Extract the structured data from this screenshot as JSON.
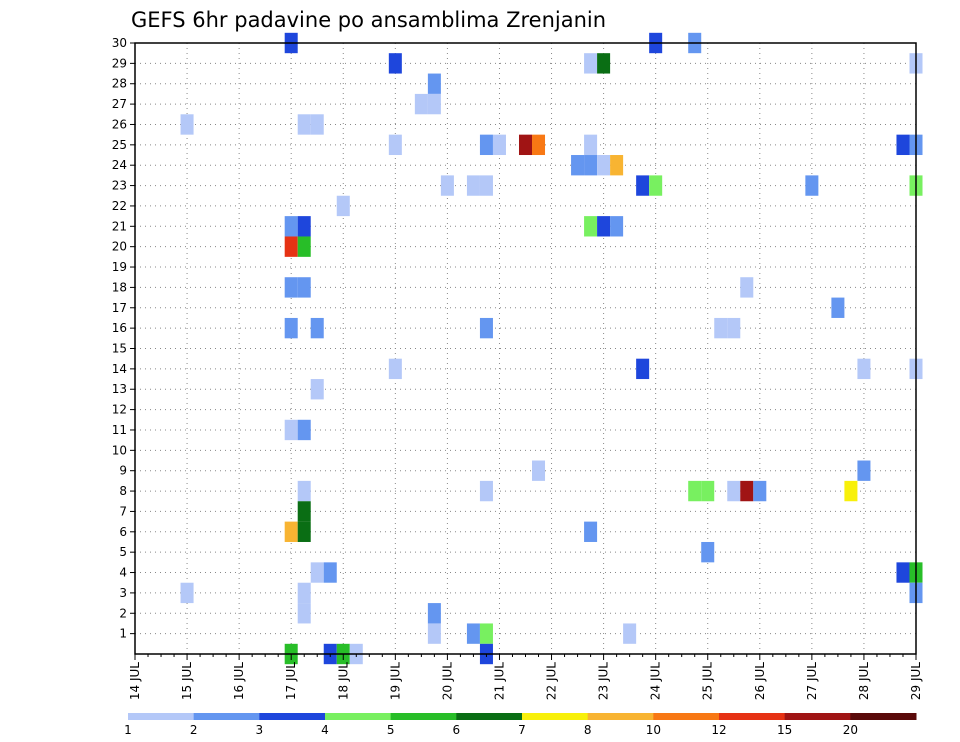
{
  "chart_data": {
    "type": "heatmap",
    "title": "GEFS 6hr padavine po ansamblima Zrenjanin",
    "xlabel": "",
    "ylabel": "",
    "x_tick_labels": [
      "14 JUL",
      "15 JUL",
      "16 JUL",
      "17 JUL",
      "18 JUL",
      "19 JUL",
      "20 JUL",
      "21 JUL",
      "22 JUL",
      "23 JUL",
      "24 JUL",
      "25 JUL",
      "26 JUL",
      "27 JUL",
      "28 JUL",
      "29 JUL"
    ],
    "x_time_range_days": [
      0,
      15
    ],
    "y_tick_labels": [
      "1",
      "2",
      "3",
      "4",
      "5",
      "6",
      "7",
      "8",
      "9",
      "10",
      "11",
      "12",
      "13",
      "14",
      "15",
      "16",
      "17",
      "18",
      "19",
      "20",
      "21",
      "22",
      "23",
      "24",
      "25",
      "26",
      "27",
      "28",
      "29",
      "30"
    ],
    "y_range": [
      0,
      30
    ],
    "step_hours": 6,
    "grid": true,
    "colorbar": {
      "position": "bottom",
      "levels": [
        "1",
        "2",
        "3",
        "4",
        "5",
        "6",
        "7",
        "8",
        "10",
        "12",
        "15",
        "20"
      ],
      "colors": [
        "#b4c8f8",
        "#6496f0",
        "#1e46dc",
        "#78f060",
        "#28be28",
        "#0a6e14",
        "#f8f00a",
        "#f8b432",
        "#f87814",
        "#e63214",
        "#a01414",
        "#5a0a0a"
      ]
    },
    "cells": [
      {
        "m": 30,
        "t": "17 JUL 00Z",
        "c": 3
      },
      {
        "m": 30,
        "t": "24 JUL 00Z",
        "c": 3
      },
      {
        "m": 30,
        "t": "24 JUL 18Z",
        "c": 2
      },
      {
        "m": 29,
        "t": "19 JUL 00Z",
        "c": 3
      },
      {
        "m": 29,
        "t": "22 JUL 18Z",
        "c": 1
      },
      {
        "m": 29,
        "t": "23 JUL 00Z",
        "c": 6
      },
      {
        "m": 29,
        "t": "29 JUL 00Z",
        "c": 1
      },
      {
        "m": 28,
        "t": "19 JUL 18Z",
        "c": 2
      },
      {
        "m": 27,
        "t": "19 JUL 12Z",
        "c": 1
      },
      {
        "m": 27,
        "t": "19 JUL 18Z",
        "c": 1
      },
      {
        "m": 26,
        "t": "15 JUL 00Z",
        "c": 1
      },
      {
        "m": 26,
        "t": "17 JUL 06Z",
        "c": 1
      },
      {
        "m": 26,
        "t": "17 JUL 12Z",
        "c": 1
      },
      {
        "m": 25,
        "t": "19 JUL 00Z",
        "c": 1
      },
      {
        "m": 25,
        "t": "20 JUL 18Z",
        "c": 2
      },
      {
        "m": 25,
        "t": "21 JUL 00Z",
        "c": 1
      },
      {
        "m": 25,
        "t": "21 JUL 12Z",
        "c": 11
      },
      {
        "m": 25,
        "t": "21 JUL 18Z",
        "c": 9
      },
      {
        "m": 25,
        "t": "22 JUL 18Z",
        "c": 1
      },
      {
        "m": 25,
        "t": "28 JUL 18Z",
        "c": 3
      },
      {
        "m": 25,
        "t": "29 JUL 00Z",
        "c": 2
      },
      {
        "m": 24,
        "t": "22 JUL 12Z",
        "c": 2
      },
      {
        "m": 24,
        "t": "22 JUL 18Z",
        "c": 2
      },
      {
        "m": 24,
        "t": "23 JUL 00Z",
        "c": 1
      },
      {
        "m": 24,
        "t": "23 JUL 06Z",
        "c": 8
      },
      {
        "m": 23,
        "t": "20 JUL 00Z",
        "c": 1
      },
      {
        "m": 23,
        "t": "20 JUL 12Z",
        "c": 1
      },
      {
        "m": 23,
        "t": "20 JUL 18Z",
        "c": 1
      },
      {
        "m": 23,
        "t": "23 JUL 18Z",
        "c": 3
      },
      {
        "m": 23,
        "t": "24 JUL 00Z",
        "c": 4
      },
      {
        "m": 23,
        "t": "27 JUL 00Z",
        "c": 2
      },
      {
        "m": 23,
        "t": "29 JUL 00Z",
        "c": 4
      },
      {
        "m": 22,
        "t": "18 JUL 00Z",
        "c": 1
      },
      {
        "m": 21,
        "t": "17 JUL 00Z",
        "c": 2
      },
      {
        "m": 21,
        "t": "17 JUL 06Z",
        "c": 3
      },
      {
        "m": 21,
        "t": "22 JUL 18Z",
        "c": 4
      },
      {
        "m": 21,
        "t": "23 JUL 00Z",
        "c": 3
      },
      {
        "m": 21,
        "t": "23 JUL 06Z",
        "c": 2
      },
      {
        "m": 20,
        "t": "17 JUL 00Z",
        "c": 10
      },
      {
        "m": 20,
        "t": "17 JUL 06Z",
        "c": 5
      },
      {
        "m": 18,
        "t": "17 JUL 00Z",
        "c": 2
      },
      {
        "m": 18,
        "t": "17 JUL 06Z",
        "c": 2
      },
      {
        "m": 18,
        "t": "25 JUL 18Z",
        "c": 1
      },
      {
        "m": 17,
        "t": "27 JUL 12Z",
        "c": 2
      },
      {
        "m": 16,
        "t": "17 JUL 00Z",
        "c": 2
      },
      {
        "m": 16,
        "t": "17 JUL 12Z",
        "c": 2
      },
      {
        "m": 16,
        "t": "20 JUL 18Z",
        "c": 2
      },
      {
        "m": 16,
        "t": "25 JUL 06Z",
        "c": 1
      },
      {
        "m": 16,
        "t": "25 JUL 12Z",
        "c": 1
      },
      {
        "m": 14,
        "t": "19 JUL 00Z",
        "c": 1
      },
      {
        "m": 14,
        "t": "23 JUL 18Z",
        "c": 3
      },
      {
        "m": 14,
        "t": "28 JUL 00Z",
        "c": 1
      },
      {
        "m": 14,
        "t": "29 JUL 00Z",
        "c": 1
      },
      {
        "m": 13,
        "t": "17 JUL 12Z",
        "c": 1
      },
      {
        "m": 11,
        "t": "17 JUL 00Z",
        "c": 1
      },
      {
        "m": 11,
        "t": "17 JUL 06Z",
        "c": 2
      },
      {
        "m": 9,
        "t": "21 JUL 18Z",
        "c": 1
      },
      {
        "m": 9,
        "t": "28 JUL 00Z",
        "c": 2
      },
      {
        "m": 8,
        "t": "17 JUL 06Z",
        "c": 1
      },
      {
        "m": 8,
        "t": "20 JUL 18Z",
        "c": 1
      },
      {
        "m": 8,
        "t": "24 JUL 18Z",
        "c": 4
      },
      {
        "m": 8,
        "t": "25 JUL 00Z",
        "c": 4
      },
      {
        "m": 8,
        "t": "25 JUL 12Z",
        "c": 1
      },
      {
        "m": 8,
        "t": "25 JUL 18Z",
        "c": 11
      },
      {
        "m": 8,
        "t": "26 JUL 00Z",
        "c": 2
      },
      {
        "m": 8,
        "t": "27 JUL 18Z",
        "c": 7
      },
      {
        "m": 7,
        "t": "17 JUL 06Z",
        "c": 6
      },
      {
        "m": 6,
        "t": "17 JUL 00Z",
        "c": 8
      },
      {
        "m": 6,
        "t": "17 JUL 06Z",
        "c": 6
      },
      {
        "m": 6,
        "t": "22 JUL 18Z",
        "c": 2
      },
      {
        "m": 5,
        "t": "25 JUL 00Z",
        "c": 2
      },
      {
        "m": 4,
        "t": "17 JUL 12Z",
        "c": 1
      },
      {
        "m": 4,
        "t": "17 JUL 18Z",
        "c": 2
      },
      {
        "m": 4,
        "t": "28 JUL 18Z",
        "c": 3
      },
      {
        "m": 4,
        "t": "29 JUL 00Z",
        "c": 5
      },
      {
        "m": 3,
        "t": "15 JUL 00Z",
        "c": 1
      },
      {
        "m": 3,
        "t": "17 JUL 06Z",
        "c": 1
      },
      {
        "m": 3,
        "t": "29 JUL 00Z",
        "c": 2
      },
      {
        "m": 2,
        "t": "17 JUL 06Z",
        "c": 1
      },
      {
        "m": 2,
        "t": "19 JUL 18Z",
        "c": 2
      },
      {
        "m": 1,
        "t": "19 JUL 18Z",
        "c": 1
      },
      {
        "m": 1,
        "t": "20 JUL 12Z",
        "c": 2
      },
      {
        "m": 1,
        "t": "20 JUL 18Z",
        "c": 4
      },
      {
        "m": 1,
        "t": "23 JUL 12Z",
        "c": 1
      },
      {
        "m": 0,
        "t": "17 JUL 00Z",
        "c": 5
      },
      {
        "m": 0,
        "t": "17 JUL 18Z",
        "c": 3
      },
      {
        "m": 0,
        "t": "18 JUL 00Z",
        "c": 5
      },
      {
        "m": 0,
        "t": "18 JUL 06Z",
        "c": 1
      },
      {
        "m": 0,
        "t": "20 JUL 18Z",
        "c": 3
      }
    ]
  }
}
